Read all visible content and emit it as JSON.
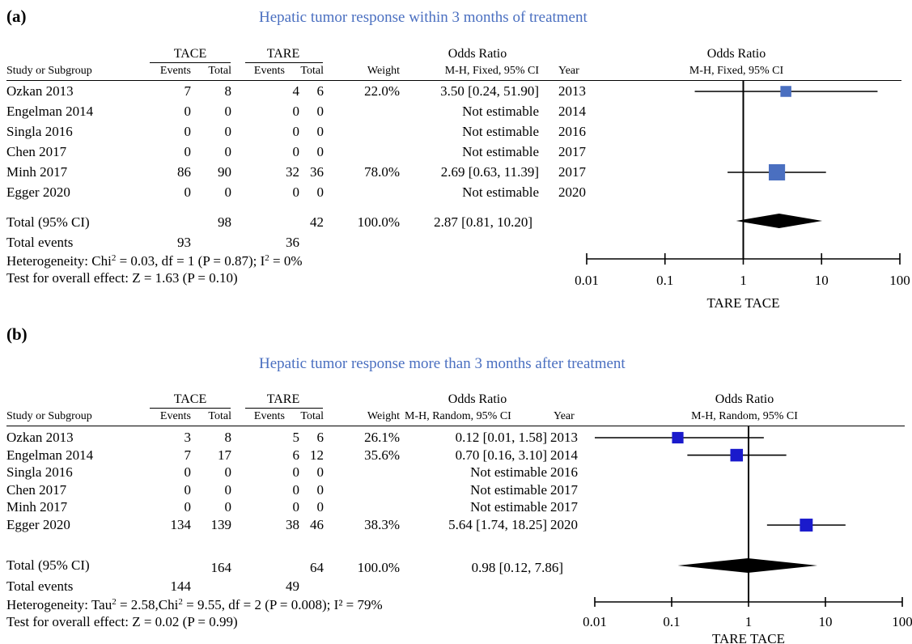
{
  "panels": [
    {
      "label": "(a)",
      "title": "Hepatic tumor response within 3 months of treatment",
      "headers": {
        "group1": "TACE",
        "group2": "TARE",
        "study": "Study or Subgroup",
        "events": "Events",
        "total": "Total",
        "weight": "Weight",
        "or_title": "Odds Ratio",
        "or_method": "M-H, Fixed, 95% CI",
        "year": "Year",
        "plot_title": "Odds Ratio",
        "plot_method": "M-H, Fixed, 95% CI"
      },
      "rows": [
        {
          "study": "Ozkan 2013",
          "e1": "7",
          "t1": "8",
          "e2": "4",
          "t2": "6",
          "weight": "22.0%",
          "ci": "3.50 [0.24, 51.90]",
          "year": "2013"
        },
        {
          "study": "Engelman 2014",
          "e1": "0",
          "t1": "0",
          "e2": "0",
          "t2": "0",
          "weight": "",
          "ci": "Not estimable",
          "year": "2014"
        },
        {
          "study": "Singla 2016",
          "e1": "0",
          "t1": "0",
          "e2": "0",
          "t2": "0",
          "weight": "",
          "ci": "Not estimable",
          "year": "2016"
        },
        {
          "study": "Chen 2017",
          "e1": "0",
          "t1": "0",
          "e2": "0",
          "t2": "0",
          "weight": "",
          "ci": "Not estimable",
          "year": "2017"
        },
        {
          "study": "Minh 2017",
          "e1": "86",
          "t1": "90",
          "e2": "32",
          "t2": "36",
          "weight": "78.0%",
          "ci": "2.69 [0.63, 11.39]",
          "year": "2017"
        },
        {
          "study": "Egger 2020",
          "e1": "0",
          "t1": "0",
          "e2": "0",
          "t2": "0",
          "weight": "",
          "ci": "Not estimable",
          "year": "2020"
        }
      ],
      "total": {
        "label": "Total (95% CI)",
        "t1": "98",
        "t2": "42",
        "weight": "100.0%",
        "ci": "2.87 [0.81, 10.20]"
      },
      "total_events": {
        "label": "Total events",
        "e1": "93",
        "e2": "36"
      },
      "heterogeneity": {
        "prefix": "Heterogeneity: Chi",
        "sup1": "2",
        "mid": " = 0.03, df = 1 (P = 0.87); I",
        "sup2": "2",
        "suffix": " = 0%"
      },
      "overall_effect": "Test for overall effect: Z = 1.63 (P = 0.10)",
      "axis_label": "TARE TACE"
    },
    {
      "label": "(b)",
      "title": "Hepatic tumor response more than 3 months after treatment",
      "headers": {
        "group1": "TACE",
        "group2": "TARE",
        "study": "Study or Subgroup",
        "events": "Events",
        "total": "Total",
        "weight": "Weight",
        "or_title": "Odds Ratio",
        "or_method": "M-H, Random, 95% CI",
        "year": "Year",
        "plot_title": "Odds Ratio",
        "plot_method": "M-H, Random, 95% CI"
      },
      "rows": [
        {
          "study": "Ozkan 2013",
          "e1": "3",
          "t1": "8",
          "e2": "5",
          "t2": "6",
          "weight": "26.1%",
          "ci": "0.12 [0.01, 1.58]",
          "year": "2013"
        },
        {
          "study": "Engelman 2014",
          "e1": "7",
          "t1": "17",
          "e2": "6",
          "t2": "12",
          "weight": "35.6%",
          "ci": "0.70 [0.16, 3.10]",
          "year": "2014"
        },
        {
          "study": "Singla 2016",
          "e1": "0",
          "t1": "0",
          "e2": "0",
          "t2": "0",
          "weight": "",
          "ci": "Not estimable",
          "year": "2016"
        },
        {
          "study": "Chen 2017",
          "e1": "0",
          "t1": "0",
          "e2": "0",
          "t2": "0",
          "weight": "",
          "ci": "Not estimable",
          "year": "2017"
        },
        {
          "study": "Minh 2017",
          "e1": "0",
          "t1": "0",
          "e2": "0",
          "t2": "0",
          "weight": "",
          "ci": "Not estimable",
          "year": "2017"
        },
        {
          "study": "Egger 2020",
          "e1": "134",
          "t1": "139",
          "e2": "38",
          "t2": "46",
          "weight": "38.3%",
          "ci": "5.64 [1.74, 18.25]",
          "year": "2020"
        }
      ],
      "total": {
        "label": "Total (95% CI)",
        "t1": "164",
        "t2": "64",
        "weight": "100.0%",
        "ci": "0.98 [0.12, 7.86]"
      },
      "total_events": {
        "label": "Total events",
        "e1": "144",
        "e2": "49"
      },
      "heterogeneity": {
        "prefix": "Heterogeneity: Tau",
        "sup1": "2",
        "mid": " = 2.58,Chi",
        "sup2": "2",
        "suffix": " = 9.55, df = 2 (P = 0.008); I² = 79%"
      },
      "overall_effect": "Test for overall effect: Z = 0.02 (P = 0.99)",
      "axis_label": "TARE TACE"
    }
  ],
  "chart_data": [
    {
      "type": "scatter",
      "subtype": "forest_plot",
      "title": "Hepatic tumor response within 3 months of treatment",
      "xscale": "log",
      "xlim": [
        0.01,
        100
      ],
      "xticks": [
        "0.01",
        "0.1",
        "1",
        "10",
        "100"
      ],
      "xlabel": "TARE TACE",
      "marker_color": "#4a6fc0",
      "studies": [
        {
          "name": "Ozkan 2013",
          "or": 3.5,
          "lo": 0.24,
          "hi": 51.9,
          "weight": 22.0
        },
        {
          "name": "Minh 2017",
          "or": 2.69,
          "lo": 0.63,
          "hi": 11.39,
          "weight": 78.0
        }
      ],
      "pooled": {
        "or": 2.87,
        "lo": 0.81,
        "hi": 10.2
      }
    },
    {
      "type": "scatter",
      "subtype": "forest_plot",
      "title": "Hepatic tumor response more than 3 months after treatment",
      "xscale": "log",
      "xlim": [
        0.01,
        100
      ],
      "xticks": [
        "0.01",
        "0.1",
        "1",
        "10",
        "100"
      ],
      "xlabel": "TARE TACE",
      "marker_color": "#1a1acc",
      "studies": [
        {
          "name": "Ozkan 2013",
          "or": 0.12,
          "lo": 0.01,
          "hi": 1.58,
          "weight": 26.1
        },
        {
          "name": "Engelman 2014",
          "or": 0.7,
          "lo": 0.16,
          "hi": 3.1,
          "weight": 35.6
        },
        {
          "name": "Egger 2020",
          "or": 5.64,
          "lo": 1.74,
          "hi": 18.25,
          "weight": 38.3
        }
      ],
      "pooled": {
        "or": 0.98,
        "lo": 0.12,
        "hi": 7.86
      }
    }
  ]
}
